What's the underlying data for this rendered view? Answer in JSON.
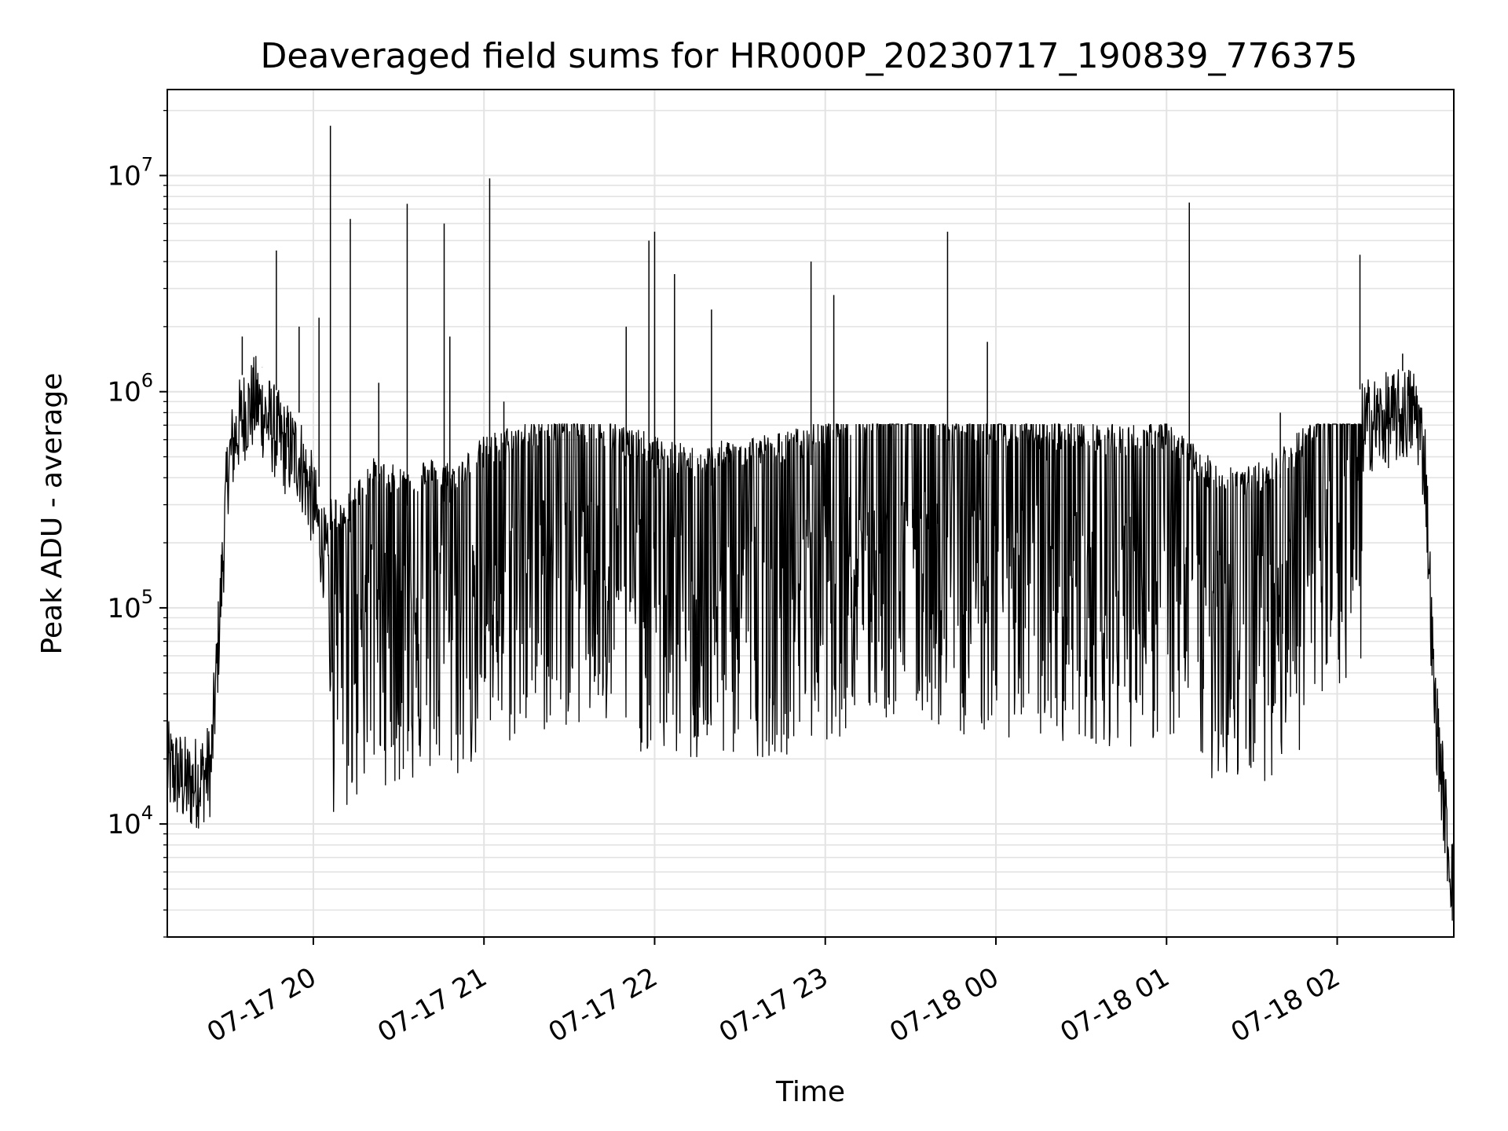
{
  "chart_data": {
    "type": "line",
    "title": "Deaveraged field sums for HR000P_20230717_190839_776375",
    "xlabel": "Time",
    "ylabel": "Peak ADU - average",
    "yscale": "log",
    "ylim": [
      3000,
      25000000
    ],
    "xlim": [
      "2023-07-17 19:08:39",
      "2023-07-18 02:41:00"
    ],
    "grid": true,
    "x_ticks": [
      {
        "t": "2023-07-17 20:00",
        "label": "07-17 20"
      },
      {
        "t": "2023-07-17 21:00",
        "label": "07-17 21"
      },
      {
        "t": "2023-07-17 22:00",
        "label": "07-17 22"
      },
      {
        "t": "2023-07-17 23:00",
        "label": "07-17 23"
      },
      {
        "t": "2023-07-18 00:00",
        "label": "07-18 00"
      },
      {
        "t": "2023-07-18 01:00",
        "label": "07-18 01"
      },
      {
        "t": "2023-07-18 02:00",
        "label": "07-18 02"
      }
    ],
    "y_ticks": [
      {
        "value": 10000,
        "base": "10",
        "exp": "4"
      },
      {
        "value": 100000,
        "base": "10",
        "exp": "5"
      },
      {
        "value": 1000000,
        "base": "10",
        "exp": "6"
      },
      {
        "value": 10000000,
        "base": "10",
        "exp": "7"
      }
    ],
    "series": [
      {
        "color": "#000000",
        "x": [
          "2023-07-17 19:08:39",
          "2023-07-17 19:12",
          "2023-07-17 19:16",
          "2023-07-17 19:20",
          "2023-07-17 19:24",
          "2023-07-17 19:26",
          "2023-07-17 19:28",
          "2023-07-17 19:30",
          "2023-07-17 19:33",
          "2023-07-17 19:36",
          "2023-07-17 19:40",
          "2023-07-17 19:45",
          "2023-07-17 19:50",
          "2023-07-17 19:55",
          "2023-07-17 20:00",
          "2023-07-17 20:05",
          "2023-07-17 20:10",
          "2023-07-17 20:20",
          "2023-07-17 20:30",
          "2023-07-17 20:40",
          "2023-07-17 20:50",
          "2023-07-17 21:00",
          "2023-07-17 21:15",
          "2023-07-17 21:30",
          "2023-07-17 21:45",
          "2023-07-17 22:00",
          "2023-07-17 22:15",
          "2023-07-17 22:30",
          "2023-07-17 22:45",
          "2023-07-17 23:00",
          "2023-07-17 23:15",
          "2023-07-17 23:30",
          "2023-07-17 23:45",
          "2023-07-18 00:00",
          "2023-07-18 00:15",
          "2023-07-18 00:30",
          "2023-07-18 00:45",
          "2023-07-18 01:00",
          "2023-07-18 01:15",
          "2023-07-18 01:30",
          "2023-07-18 01:45",
          "2023-07-18 02:00",
          "2023-07-18 02:10",
          "2023-07-18 02:20",
          "2023-07-18 02:25",
          "2023-07-18 02:28",
          "2023-07-18 02:31",
          "2023-07-18 02:34",
          "2023-07-18 02:37",
          "2023-07-18 02:39",
          "2023-07-18 02:41"
        ],
        "y": [
          18000,
          17000,
          15000,
          16000,
          18000,
          50000,
          150000,
          450000,
          650000,
          800000,
          900000,
          700000,
          550000,
          500000,
          300000,
          150000,
          120000,
          200000,
          180000,
          200000,
          190000,
          250000,
          300000,
          350000,
          300000,
          250000,
          220000,
          250000,
          260000,
          300000,
          350000,
          380000,
          320000,
          320000,
          300000,
          300000,
          280000,
          300000,
          200000,
          180000,
          250000,
          450000,
          700000,
          750000,
          800000,
          800000,
          450000,
          40000,
          15000,
          8000,
          5000
        ],
        "spikes": [
          {
            "t": "2023-07-17 19:35",
            "y": 1800000
          },
          {
            "t": "2023-07-17 19:42",
            "y": 1300000
          },
          {
            "t": "2023-07-17 19:47",
            "y": 4500000
          },
          {
            "t": "2023-07-17 19:55",
            "y": 2000000
          },
          {
            "t": "2023-07-17 20:02",
            "y": 2200000
          },
          {
            "t": "2023-07-17 20:06",
            "y": 17000000
          },
          {
            "t": "2023-07-17 20:13",
            "y": 6300000
          },
          {
            "t": "2023-07-17 20:23",
            "y": 1100000
          },
          {
            "t": "2023-07-17 20:33",
            "y": 7400000
          },
          {
            "t": "2023-07-17 20:46",
            "y": 6000000
          },
          {
            "t": "2023-07-17 20:48",
            "y": 1800000
          },
          {
            "t": "2023-07-17 21:02",
            "y": 9700000
          },
          {
            "t": "2023-07-17 21:07",
            "y": 900000
          },
          {
            "t": "2023-07-17 21:50",
            "y": 2000000
          },
          {
            "t": "2023-07-17 21:58",
            "y": 5000000
          },
          {
            "t": "2023-07-17 22:00",
            "y": 5500000
          },
          {
            "t": "2023-07-17 22:07",
            "y": 3500000
          },
          {
            "t": "2023-07-17 22:20",
            "y": 2400000
          },
          {
            "t": "2023-07-17 22:55",
            "y": 4000000
          },
          {
            "t": "2023-07-17 23:03",
            "y": 2800000
          },
          {
            "t": "2023-07-17 23:43",
            "y": 5500000
          },
          {
            "t": "2023-07-17 23:57",
            "y": 1700000
          },
          {
            "t": "2023-07-18 00:18",
            "y": 700000
          },
          {
            "t": "2023-07-18 01:08",
            "y": 7500000
          },
          {
            "t": "2023-07-18 01:40",
            "y": 800000
          },
          {
            "t": "2023-07-18 02:08",
            "y": 4300000
          },
          {
            "t": "2023-07-18 02:23",
            "y": 1500000
          }
        ]
      }
    ]
  }
}
